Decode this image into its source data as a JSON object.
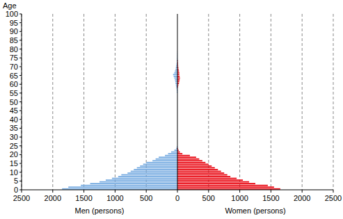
{
  "chart_data": {
    "type": "bar",
    "orientation": "horizontal",
    "grid": true,
    "y_label": "Age",
    "x": [
      0,
      1,
      2,
      3,
      4,
      5,
      6,
      7,
      8,
      9,
      10,
      11,
      12,
      13,
      14,
      15,
      16,
      17,
      18,
      19,
      20,
      21,
      22,
      23,
      24,
      25,
      26,
      27,
      28,
      29,
      30,
      31,
      32,
      33,
      34,
      35,
      36,
      37,
      38,
      39,
      40,
      41,
      42,
      43,
      44,
      45,
      46,
      47,
      48,
      49,
      50,
      51,
      52,
      53,
      54,
      55,
      56,
      57,
      58,
      59,
      60,
      61,
      62,
      63,
      64,
      65,
      66,
      67,
      68,
      69,
      70,
      71,
      72,
      73,
      74,
      75,
      76,
      77,
      78,
      79,
      80,
      81,
      82,
      83,
      84,
      85,
      86,
      87,
      88,
      89,
      90,
      91,
      92,
      93,
      94,
      95,
      96,
      97,
      98,
      99,
      100
    ],
    "series": [
      {
        "name": "Men (persons)",
        "color": "#73a9e0",
        "values": [
          1850,
          1750,
          1550,
          1400,
          1250,
          1150,
          1050,
          950,
          900,
          800,
          750,
          700,
          650,
          600,
          550,
          500,
          400,
          350,
          300,
          200,
          150,
          100,
          50,
          20,
          10,
          0,
          0,
          0,
          0,
          0,
          0,
          0,
          0,
          0,
          0,
          0,
          0,
          0,
          0,
          0,
          0,
          0,
          0,
          0,
          0,
          0,
          0,
          0,
          0,
          0,
          0,
          0,
          0,
          0,
          0,
          10,
          10,
          15,
          20,
          25,
          30,
          35,
          40,
          50,
          60,
          70,
          50,
          40,
          30,
          25,
          20,
          15,
          10,
          10,
          8,
          5,
          5,
          3,
          2,
          0,
          0,
          0,
          0,
          0,
          0,
          0,
          0,
          0,
          0,
          0,
          0,
          0,
          0,
          0,
          0,
          0,
          0,
          0,
          0,
          0,
          0
        ]
      },
      {
        "name": "Women (persons)",
        "color": "#e8000b",
        "values": [
          1650,
          1550,
          1450,
          1250,
          1150,
          1050,
          950,
          850,
          800,
          750,
          700,
          650,
          600,
          550,
          500,
          450,
          400,
          350,
          300,
          200,
          80,
          40,
          20,
          10,
          0,
          0,
          0,
          0,
          0,
          0,
          0,
          0,
          0,
          0,
          0,
          0,
          0,
          0,
          0,
          0,
          0,
          0,
          0,
          0,
          0,
          0,
          0,
          0,
          0,
          0,
          0,
          0,
          0,
          0,
          0,
          0,
          0,
          0,
          10,
          15,
          25,
          30,
          35,
          40,
          35,
          30,
          30,
          25,
          20,
          15,
          12,
          10,
          8,
          5,
          0,
          0,
          0,
          0,
          0,
          0,
          0,
          0,
          0,
          0,
          0,
          0,
          0,
          0,
          0,
          0,
          0,
          0,
          0,
          0,
          0,
          0,
          0,
          0,
          0,
          0,
          0
        ]
      }
    ],
    "xlim": [
      0,
      2500
    ],
    "xticks": [
      0,
      500,
      1000,
      1500,
      2000,
      2500
    ],
    "ylim": [
      0,
      100
    ],
    "yticks": [
      0,
      5,
      10,
      15,
      20,
      25,
      30,
      35,
      40,
      45,
      50,
      55,
      60,
      65,
      70,
      75,
      80,
      85,
      90,
      95,
      100
    ]
  }
}
